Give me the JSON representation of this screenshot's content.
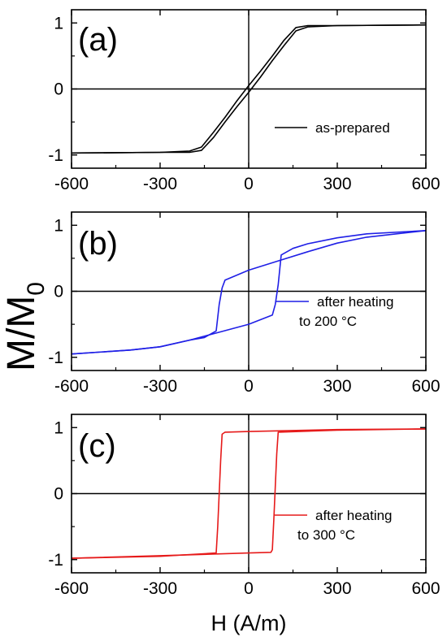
{
  "figure": {
    "ylabel_main": "M/M",
    "ylabel_sub": "0",
    "xlabel": "H (A/m)"
  },
  "chart_data": [
    {
      "type": "line",
      "panel_label": "(a)",
      "xlim": [
        -600,
        600
      ],
      "ylim": [
        -1.2,
        1.2
      ],
      "x_ticks": [
        -600,
        -300,
        0,
        300,
        600
      ],
      "x_tick_labels": [
        "-600",
        "-300",
        "0",
        "300",
        "600"
      ],
      "y_ticks": [
        1,
        0,
        -1
      ],
      "y_tick_labels": [
        "1",
        "0",
        "-1"
      ],
      "legend": [
        "as-prepared"
      ],
      "legend_placement": "right",
      "color": "#000000",
      "series": [
        {
          "name": "as-prepared",
          "branch": "descending",
          "x": [
            600,
            300,
            200,
            160,
            120,
            80,
            40,
            0,
            -40,
            -80,
            -120,
            -160,
            -200,
            -300,
            -600
          ],
          "y": [
            0.97,
            0.96,
            0.96,
            0.93,
            0.74,
            0.5,
            0.27,
            0.05,
            -0.18,
            -0.43,
            -0.66,
            -0.88,
            -0.94,
            -0.96,
            -0.97
          ]
        },
        {
          "name": "as-prepared",
          "branch": "ascending",
          "x": [
            -600,
            -300,
            -200,
            -160,
            -120,
            -80,
            -40,
            0,
            40,
            80,
            120,
            160,
            200,
            300,
            600
          ],
          "y": [
            -0.97,
            -0.96,
            -0.96,
            -0.93,
            -0.74,
            -0.5,
            -0.27,
            -0.05,
            0.18,
            0.43,
            0.66,
            0.88,
            0.94,
            0.96,
            0.97
          ]
        }
      ]
    },
    {
      "type": "line",
      "panel_label": "(b)",
      "xlim": [
        -600,
        600
      ],
      "ylim": [
        -1.2,
        1.2
      ],
      "x_ticks": [
        -600,
        -300,
        0,
        300,
        600
      ],
      "x_tick_labels": [
        "-600",
        "-300",
        "0",
        "300",
        "600"
      ],
      "y_ticks": [
        1,
        0,
        -1
      ],
      "y_tick_labels": [
        "1",
        "0",
        "-1"
      ],
      "legend": [
        "after heating",
        "to 200 °C"
      ],
      "legend_placement": "right",
      "color": "#1f1fe6",
      "series": [
        {
          "name": "after heating to 200 °C",
          "branch": "descending",
          "x": [
            600,
            400,
            300,
            200,
            100,
            0,
            -80,
            -90,
            -100,
            -110,
            -150,
            -200,
            -300,
            -400,
            -600
          ],
          "y": [
            0.92,
            0.82,
            0.73,
            0.6,
            0.46,
            0.32,
            0.17,
            0.05,
            -0.2,
            -0.6,
            -0.7,
            -0.74,
            -0.84,
            -0.89,
            -0.95
          ]
        },
        {
          "name": "after heating to 200 °C",
          "branch": "ascending",
          "x": [
            -600,
            -400,
            -300,
            -200,
            -100,
            0,
            80,
            90,
            100,
            110,
            150,
            200,
            300,
            400,
            600
          ],
          "y": [
            -0.95,
            -0.89,
            -0.84,
            -0.74,
            -0.62,
            -0.5,
            -0.36,
            -0.2,
            0.1,
            0.55,
            0.65,
            0.72,
            0.81,
            0.87,
            0.92
          ]
        }
      ]
    },
    {
      "type": "line",
      "panel_label": "(c)",
      "xlim": [
        -600,
        600
      ],
      "ylim": [
        -1.2,
        1.2
      ],
      "x_ticks": [
        -600,
        -300,
        0,
        300,
        600
      ],
      "x_tick_labels": [
        "-600",
        "-300",
        "0",
        "300",
        "600"
      ],
      "y_ticks": [
        1,
        0,
        -1
      ],
      "y_tick_labels": [
        "1",
        "0",
        "-1"
      ],
      "legend": [
        "after heating",
        "to 300 °C"
      ],
      "legend_placement": "right",
      "color": "#e61a1a",
      "series": [
        {
          "name": "after heating to 300 °C",
          "branch": "descending",
          "x": [
            600,
            300,
            0,
            -80,
            -90,
            -95,
            -100,
            -105,
            -110,
            -300,
            -600
          ],
          "y": [
            0.98,
            0.97,
            0.94,
            0.93,
            0.9,
            0.5,
            0.0,
            -0.5,
            -0.9,
            -0.95,
            -0.98
          ]
        },
        {
          "name": "after heating to 300 °C",
          "branch": "ascending",
          "x": [
            -600,
            -300,
            0,
            75,
            80,
            85,
            90,
            95,
            100,
            300,
            600
          ],
          "y": [
            -0.98,
            -0.94,
            -0.9,
            -0.89,
            -0.85,
            -0.4,
            0.1,
            0.6,
            0.93,
            0.96,
            0.98
          ]
        }
      ]
    }
  ]
}
